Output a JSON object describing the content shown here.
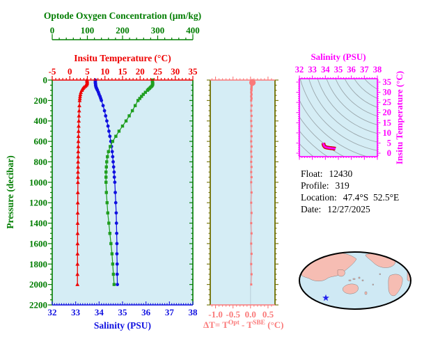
{
  "colors": {
    "panel_bg": "#d5edf5",
    "green": "#007d00",
    "oxygen_green": "#1f9e1f",
    "red": "#ee0000",
    "blue": "#1010e0",
    "salmon": "#fa7a7a",
    "olive": "#6f6f00",
    "magenta": "#ff00ff",
    "ts_outline": "#cc0000",
    "contour_gray": "#9aa6ab",
    "grid_faint": "#b9cdd8",
    "map_ocean": "#cfe9f4",
    "map_land": "#f6bdb3",
    "map_outline": "#000000",
    "star_blue": "#2222ee"
  },
  "info": {
    "lines": [
      {
        "label": "Float:",
        "value": "12430"
      },
      {
        "label": "Profile:",
        "value": "319"
      },
      {
        "label": "Location:",
        "value": "47.4°S  52.5°E"
      },
      {
        "label": "Date:",
        "value": "12/27/2025"
      }
    ]
  },
  "map": {
    "star_x": 43,
    "star_y": 70
  },
  "chart_data": [
    {
      "id": "profile-panel",
      "type": "line",
      "y_axis": {
        "label": "Pressure (decibar)",
        "range": [
          0,
          2200
        ],
        "major_ticks": [
          0,
          200,
          400,
          600,
          800,
          1000,
          1200,
          1400,
          1600,
          1800,
          2000,
          2200
        ],
        "minor_step": 50,
        "color_key": "green"
      },
      "x_axes": [
        {
          "id": "oxygen",
          "label": "Optode Oxygen Concentration (μm/kg)",
          "range": [
            0,
            400
          ],
          "major_ticks": [
            0,
            100,
            200,
            300,
            400
          ],
          "minor_step": 20,
          "color_key": "green",
          "position": "floating-top"
        },
        {
          "id": "temperature",
          "label": "Insitu Temperature (°C)",
          "range": [
            -5,
            35
          ],
          "major_ticks": [
            -5,
            0,
            5,
            10,
            15,
            20,
            25,
            30,
            35
          ],
          "minor_step": 1,
          "color_key": "red",
          "position": "top"
        },
        {
          "id": "salinity",
          "label": "Salinity (PSU)",
          "range": [
            32,
            38
          ],
          "major_ticks": [
            32,
            33,
            34,
            35,
            36,
            37,
            38
          ],
          "minor_step": 0.1,
          "color_key": "blue",
          "position": "bottom"
        }
      ],
      "series": [
        {
          "name": "insitu-temperature",
          "axis": "temperature",
          "marker": "triangle",
          "color_key": "red",
          "points": [
            [
              0,
              4.9
            ],
            [
              10,
              4.92
            ],
            [
              20,
              4.94
            ],
            [
              30,
              4.92
            ],
            [
              40,
              4.84
            ],
            [
              50,
              4.7
            ],
            [
              60,
              4.4
            ],
            [
              70,
              4.05
            ],
            [
              80,
              3.76
            ],
            [
              90,
              3.56
            ],
            [
              100,
              3.4
            ],
            [
              120,
              3.16
            ],
            [
              140,
              3.01
            ],
            [
              160,
              2.92
            ],
            [
              180,
              2.86
            ],
            [
              200,
              2.8
            ],
            [
              250,
              2.72
            ],
            [
              300,
              2.66
            ],
            [
              350,
              2.6
            ],
            [
              400,
              2.56
            ],
            [
              450,
              2.52
            ],
            [
              500,
              2.49
            ],
            [
              550,
              2.46
            ],
            [
              600,
              2.43
            ],
            [
              650,
              2.41
            ],
            [
              700,
              2.39
            ],
            [
              750,
              2.37
            ],
            [
              800,
              2.35
            ],
            [
              850,
              2.34
            ],
            [
              900,
              2.32
            ],
            [
              950,
              2.31
            ],
            [
              1000,
              2.3
            ],
            [
              1100,
              2.28
            ],
            [
              1200,
              2.26
            ],
            [
              1300,
              2.24
            ],
            [
              1400,
              2.23
            ],
            [
              1500,
              2.22
            ],
            [
              1600,
              2.21
            ],
            [
              1700,
              2.2
            ],
            [
              1800,
              2.19
            ],
            [
              1900,
              2.18
            ],
            [
              2000,
              2.17
            ]
          ]
        },
        {
          "name": "salinity",
          "axis": "salinity",
          "marker": "circle",
          "color_key": "blue",
          "points": [
            [
              0,
              33.84
            ],
            [
              10,
              33.84
            ],
            [
              20,
              33.84
            ],
            [
              30,
              33.84
            ],
            [
              40,
              33.85
            ],
            [
              50,
              33.85
            ],
            [
              60,
              33.86
            ],
            [
              70,
              33.87
            ],
            [
              80,
              33.89
            ],
            [
              90,
              33.91
            ],
            [
              100,
              33.93
            ],
            [
              120,
              33.97
            ],
            [
              140,
              34.0
            ],
            [
              160,
              34.04
            ],
            [
              180,
              34.07
            ],
            [
              200,
              34.1
            ],
            [
              250,
              34.17
            ],
            [
              300,
              34.23
            ],
            [
              350,
              34.28
            ],
            [
              400,
              34.33
            ],
            [
              450,
              34.38
            ],
            [
              500,
              34.42
            ],
            [
              550,
              34.46
            ],
            [
              600,
              34.5
            ],
            [
              650,
              34.53
            ],
            [
              700,
              34.56
            ],
            [
              750,
              34.58
            ],
            [
              800,
              34.6
            ],
            [
              850,
              34.62
            ],
            [
              900,
              34.64
            ],
            [
              950,
              34.65
            ],
            [
              1000,
              34.67
            ],
            [
              1100,
              34.69
            ],
            [
              1200,
              34.71
            ],
            [
              1300,
              34.73
            ],
            [
              1400,
              34.74
            ],
            [
              1500,
              34.75
            ],
            [
              1600,
              34.76
            ],
            [
              1700,
              34.76
            ],
            [
              1800,
              34.77
            ],
            [
              1900,
              34.77
            ],
            [
              2000,
              34.78
            ]
          ]
        },
        {
          "name": "optode-oxygen",
          "axis": "oxygen",
          "marker": "square",
          "color_key": "oxygen_green",
          "points": [
            [
              0,
              285
            ],
            [
              10,
              285
            ],
            [
              20,
              285
            ],
            [
              30,
              286
            ],
            [
              40,
              286
            ],
            [
              50,
              285
            ],
            [
              60,
              283
            ],
            [
              70,
              280
            ],
            [
              80,
              277
            ],
            [
              90,
              274
            ],
            [
              100,
              271
            ],
            [
              120,
              265
            ],
            [
              140,
              259
            ],
            [
              160,
              254
            ],
            [
              180,
              249
            ],
            [
              200,
              244
            ],
            [
              250,
              236
            ],
            [
              300,
              228
            ],
            [
              350,
              219
            ],
            [
              400,
              210
            ],
            [
              450,
              200
            ],
            [
              500,
              190
            ],
            [
              550,
              181
            ],
            [
              600,
              172
            ],
            [
              650,
              165
            ],
            [
              700,
              160
            ],
            [
              750,
              157
            ],
            [
              800,
              155
            ],
            [
              850,
              154
            ],
            [
              900,
              153
            ],
            [
              950,
              153
            ],
            [
              1000,
              153
            ],
            [
              1100,
              154
            ],
            [
              1200,
              156
            ],
            [
              1300,
              158
            ],
            [
              1400,
              161
            ],
            [
              1500,
              164
            ],
            [
              1600,
              167
            ],
            [
              1700,
              170
            ],
            [
              1800,
              172
            ],
            [
              1900,
              174
            ],
            [
              2000,
              176
            ]
          ]
        }
      ]
    },
    {
      "id": "delta-t-panel",
      "type": "line",
      "x_axis": {
        "label_parts": {
          "p1": "ΔT= T",
          "s1": "Opt",
          "p2": " - T",
          "s2": "SBE",
          "p3": " (°C)"
        },
        "range": [
          -1.15,
          0.7
        ],
        "major_ticks": [
          -1.0,
          -0.5,
          0.0,
          0.5
        ],
        "tick_labels": [
          "-1.0",
          "-0.5",
          "0.0",
          "0.5"
        ],
        "minor_step": 0.1,
        "color_key": "salmon"
      },
      "y_axis": {
        "range": [
          0,
          2200
        ],
        "major_step": 200,
        "minor_step": 50,
        "color_key": "olive"
      },
      "zero_line": 0.0,
      "series": [
        {
          "name": "delta-t",
          "marker": "square",
          "color_key": "salmon",
          "blob": {
            "pressure": 25,
            "value": 0.055
          },
          "points": [
            [
              0,
              0.05
            ],
            [
              10,
              0.06
            ],
            [
              20,
              0.06
            ],
            [
              30,
              0.05
            ],
            [
              40,
              0.04
            ],
            [
              50,
              0.04
            ],
            [
              60,
              0.03
            ],
            [
              70,
              0.03
            ],
            [
              80,
              0.03
            ],
            [
              90,
              0.02
            ],
            [
              100,
              0.03
            ],
            [
              120,
              0.02
            ],
            [
              140,
              0.03
            ],
            [
              160,
              0.02
            ],
            [
              180,
              0.03
            ],
            [
              200,
              0.02
            ],
            [
              250,
              0.03
            ],
            [
              300,
              0.02
            ],
            [
              350,
              0.03
            ],
            [
              400,
              0.02
            ],
            [
              450,
              0.03
            ],
            [
              500,
              0.02
            ],
            [
              550,
              0.03
            ],
            [
              600,
              0.02
            ],
            [
              650,
              0.03
            ],
            [
              700,
              0.02
            ],
            [
              750,
              0.03
            ],
            [
              800,
              0.02
            ],
            [
              850,
              0.03
            ],
            [
              900,
              0.02
            ],
            [
              950,
              0.03
            ],
            [
              1000,
              0.02
            ],
            [
              1100,
              0.03
            ],
            [
              1200,
              0.02
            ],
            [
              1300,
              0.03
            ],
            [
              1400,
              0.02
            ],
            [
              1500,
              0.03
            ],
            [
              1600,
              0.02
            ],
            [
              1700,
              0.03
            ],
            [
              1800,
              0.02
            ],
            [
              1900,
              0.03
            ],
            [
              2000,
              0.02
            ]
          ]
        }
      ]
    },
    {
      "id": "ts-panel",
      "type": "line",
      "x_axis": {
        "label": "Salinity (PSU)",
        "range": [
          32,
          38
        ],
        "major_ticks": [
          32,
          33,
          34,
          35,
          36,
          37,
          38
        ],
        "minor_step": 0.2,
        "color_key": "magenta"
      },
      "y_axis": {
        "label": "Insitu Temperature (°C)",
        "range": [
          -1.7,
          36.7
        ],
        "major_ticks": [
          0,
          5,
          10,
          15,
          20,
          25,
          30,
          35
        ],
        "minor_step": 1,
        "color_key": "magenta"
      },
      "contours": {
        "show": true
      },
      "series": [
        {
          "name": "ts-curve",
          "color_key": "magenta",
          "outline_key": "ts_outline",
          "points": [
            [
              33.84,
              4.9
            ],
            [
              33.84,
              4.94
            ],
            [
              33.85,
              4.7
            ],
            [
              33.86,
              4.4
            ],
            [
              33.89,
              3.76
            ],
            [
              33.93,
              3.4
            ],
            [
              34.0,
              3.01
            ],
            [
              34.1,
              2.8
            ],
            [
              34.23,
              2.66
            ],
            [
              34.33,
              2.56
            ],
            [
              34.42,
              2.49
            ],
            [
              34.5,
              2.43
            ],
            [
              34.56,
              2.39
            ],
            [
              34.6,
              2.35
            ],
            [
              34.64,
              2.32
            ],
            [
              34.67,
              2.3
            ],
            [
              34.71,
              2.26
            ],
            [
              34.74,
              2.23
            ],
            [
              34.76,
              2.21
            ],
            [
              34.78,
              2.17
            ]
          ]
        }
      ]
    }
  ]
}
